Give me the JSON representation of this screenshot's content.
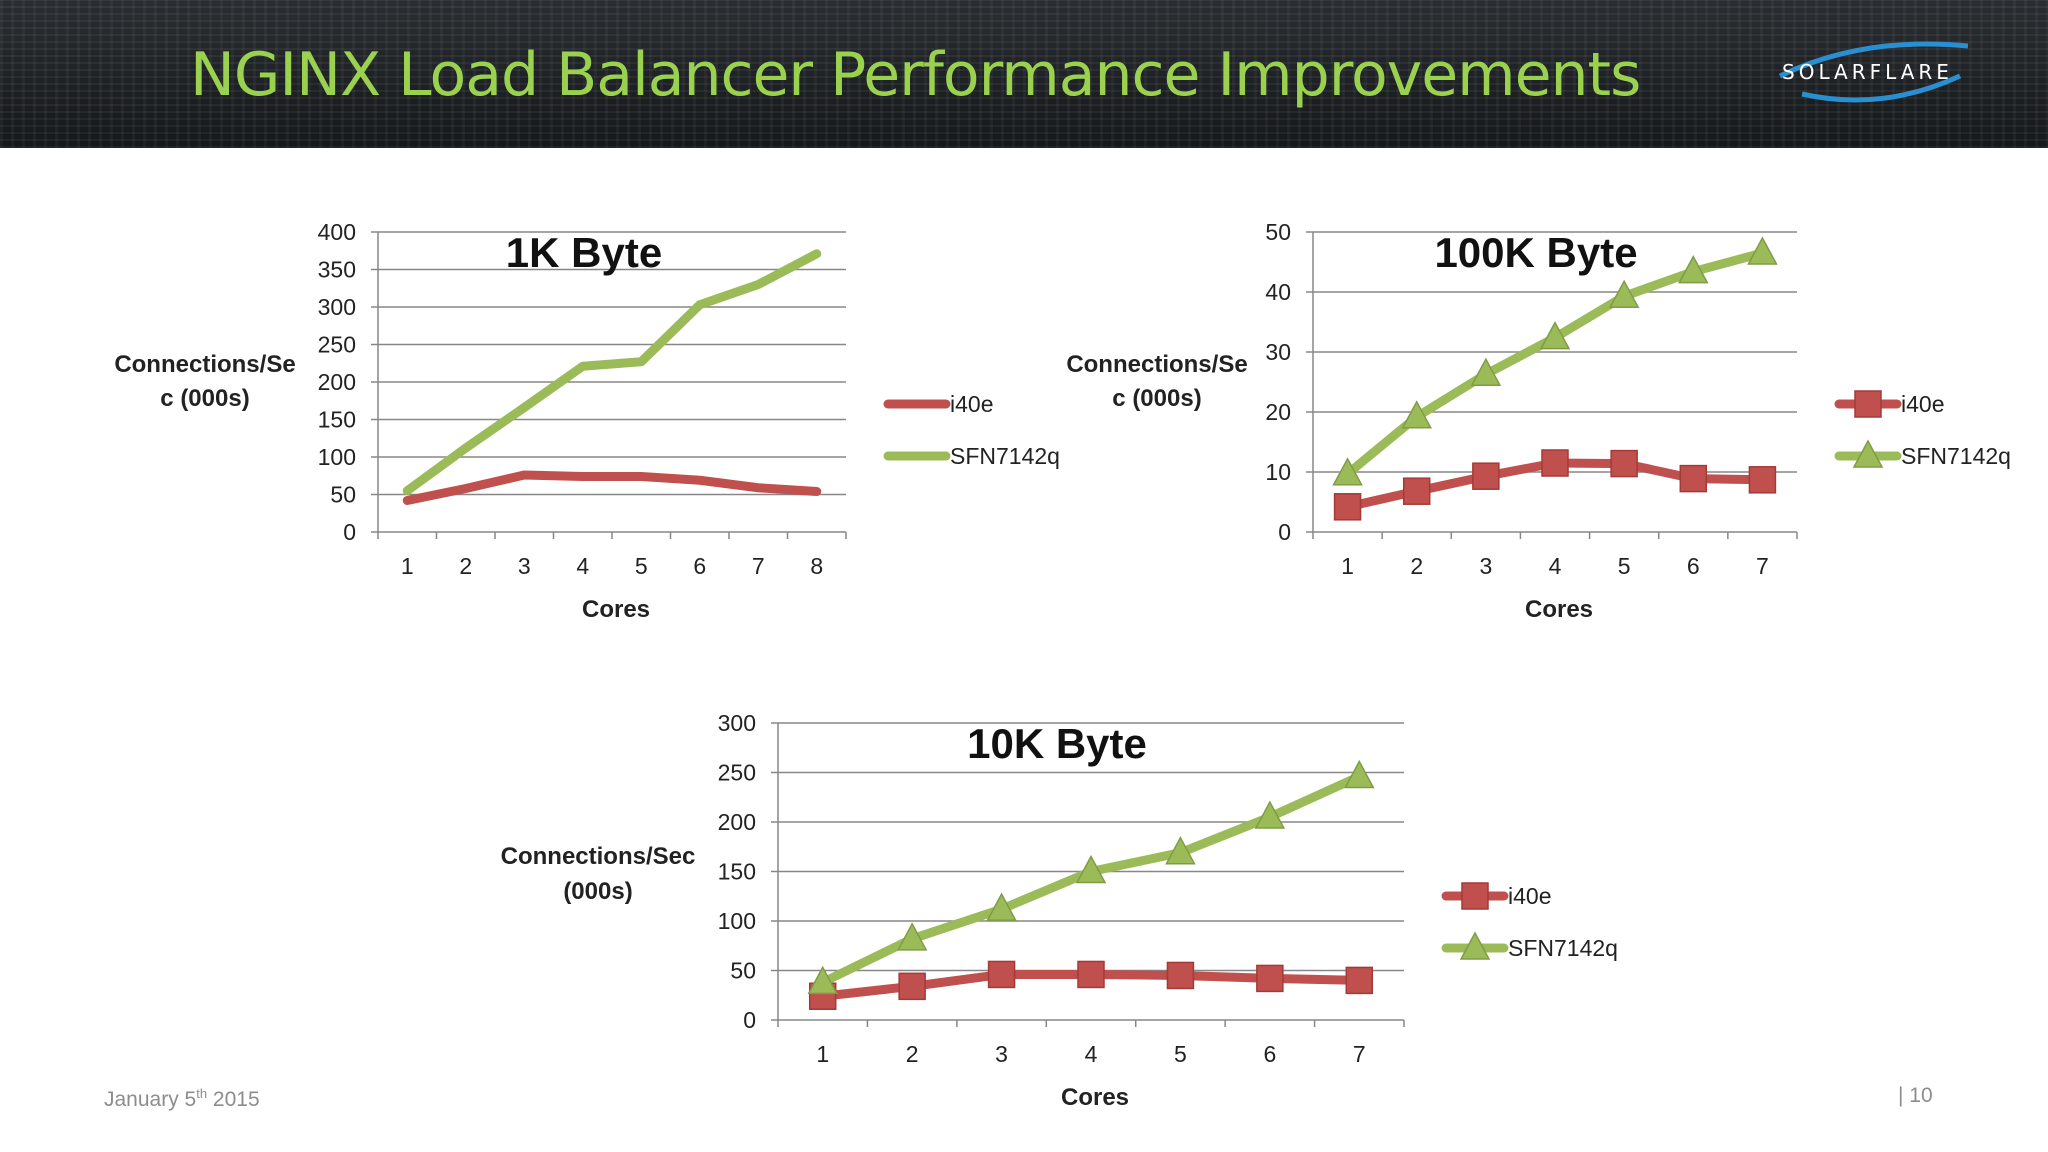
{
  "slide": {
    "title": "NGINX Load Balancer Performance Improvements",
    "logo_text": "SOLARFLARE",
    "date_prefix": "January 5",
    "date_sup": "th",
    "date_suffix": " 2015",
    "page_number": "| 10"
  },
  "colors": {
    "title": "#9ad24f",
    "i40e": "#c0504d",
    "sfn": "#9bbb59",
    "grid": "#878787"
  },
  "chart_data": [
    {
      "id": "1k",
      "type": "line",
      "title": "1K Byte",
      "xlabel": "Cores",
      "ylabel": [
        "Connections/Se",
        "c (000s)"
      ],
      "x": [
        1,
        2,
        3,
        4,
        5,
        6,
        7,
        8
      ],
      "ylim": [
        0,
        400
      ],
      "ytick_step": 50,
      "grid": true,
      "markers": false,
      "legend_position": "right",
      "series": [
        {
          "name": "i40e",
          "color": "#c0504d",
          "values": [
            42,
            58,
            76,
            74,
            74,
            69,
            59,
            54
          ]
        },
        {
          "name": "SFN7142q",
          "color": "#9bbb59",
          "values": [
            55,
            112,
            166,
            221,
            227,
            303,
            330,
            371
          ]
        }
      ]
    },
    {
      "id": "100k",
      "type": "line",
      "title": "100K Byte",
      "xlabel": "Cores",
      "ylabel": [
        "Connections/Se",
        "c (000s)"
      ],
      "x": [
        1,
        2,
        3,
        4,
        5,
        6,
        7
      ],
      "ylim": [
        0,
        50
      ],
      "ytick_step": 10,
      "grid": true,
      "markers": true,
      "legend_position": "right",
      "series": [
        {
          "name": "i40e",
          "color": "#c0504d",
          "marker": "square",
          "values": [
            4.2,
            6.8,
            9.3,
            11.5,
            11.4,
            8.9,
            8.7
          ]
        },
        {
          "name": "SFN7142q",
          "color": "#9bbb59",
          "marker": "triangle",
          "values": [
            9.7,
            19.2,
            26.3,
            32.4,
            39.3,
            43.4,
            46.5
          ]
        }
      ]
    },
    {
      "id": "10k",
      "type": "line",
      "title": "10K Byte",
      "xlabel": "Cores",
      "ylabel": [
        "Connections/Sec",
        "(000s)"
      ],
      "x": [
        1,
        2,
        3,
        4,
        5,
        6,
        7
      ],
      "ylim": [
        0,
        300
      ],
      "ytick_step": 50,
      "grid": true,
      "markers": true,
      "legend_position": "right",
      "series": [
        {
          "name": "i40e",
          "color": "#c0504d",
          "marker": "square",
          "values": [
            24,
            34,
            46,
            46,
            45,
            42,
            40
          ]
        },
        {
          "name": "SFN7142q",
          "color": "#9bbb59",
          "marker": "triangle",
          "values": [
            38,
            82,
            112,
            150,
            169,
            205,
            246
          ]
        }
      ]
    }
  ]
}
